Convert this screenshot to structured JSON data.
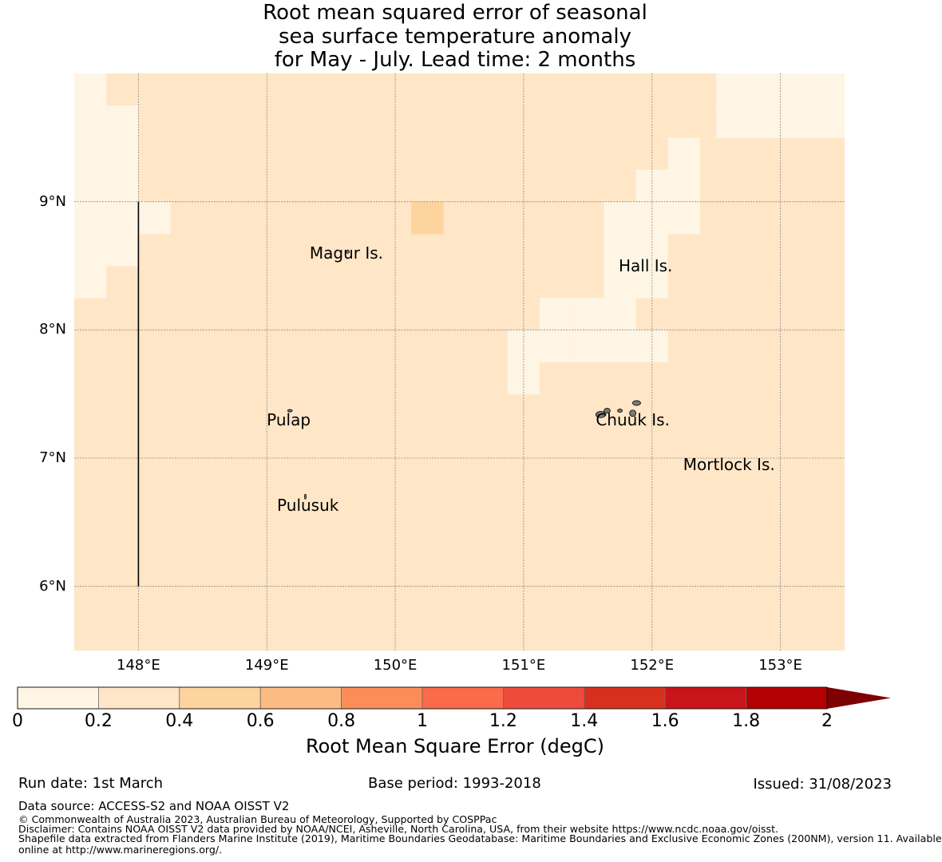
{
  "title": {
    "line1": "Root mean squared error of seasonal",
    "line2": "sea surface temperature anomaly",
    "line3": "for May - July. Lead time: 2 months"
  },
  "map": {
    "lon_range": [
      147.5,
      153.5
    ],
    "lat_range": [
      5.5,
      10.0
    ],
    "cell_size_deg": 0.25,
    "background_value": 0.3,
    "cells": [
      {
        "lon": 147.5,
        "lat": 9.75,
        "value": 0.15
      },
      {
        "lon": 147.5,
        "lat": 9.5,
        "value": 0.15
      },
      {
        "lon": 147.5,
        "lat": 9.25,
        "value": 0.15
      },
      {
        "lon": 147.5,
        "lat": 9.0,
        "value": 0.15
      },
      {
        "lon": 147.5,
        "lat": 8.75,
        "value": 0.15
      },
      {
        "lon": 147.5,
        "lat": 8.5,
        "value": 0.15
      },
      {
        "lon": 147.5,
        "lat": 8.25,
        "value": 0.15
      },
      {
        "lon": 147.75,
        "lat": 9.5,
        "value": 0.15
      },
      {
        "lon": 147.75,
        "lat": 9.25,
        "value": 0.15
      },
      {
        "lon": 147.75,
        "lat": 9.0,
        "value": 0.15
      },
      {
        "lon": 147.75,
        "lat": 8.75,
        "value": 0.15
      },
      {
        "lon": 147.75,
        "lat": 8.5,
        "value": 0.15
      },
      {
        "lon": 148.0,
        "lat": 8.75,
        "value": 0.15
      },
      {
        "lon": 150.125,
        "lat": 8.75,
        "value": 0.45
      },
      {
        "lon": 152.5,
        "lat": 9.75,
        "value": 0.15
      },
      {
        "lon": 152.75,
        "lat": 9.75,
        "value": 0.15
      },
      {
        "lon": 153.0,
        "lat": 9.75,
        "value": 0.15
      },
      {
        "lon": 153.25,
        "lat": 9.75,
        "value": 0.15
      },
      {
        "lon": 153.25,
        "lat": 9.5,
        "value": 0.15
      },
      {
        "lon": 153.0,
        "lat": 9.5,
        "value": 0.15
      },
      {
        "lon": 152.75,
        "lat": 9.5,
        "value": 0.15
      },
      {
        "lon": 152.5,
        "lat": 9.5,
        "value": 0.15
      },
      {
        "lon": 152.125,
        "lat": 9.25,
        "value": 0.15
      },
      {
        "lon": 151.875,
        "lat": 9.0,
        "value": 0.15
      },
      {
        "lon": 152.125,
        "lat": 9.0,
        "value": 0.15
      },
      {
        "lon": 151.625,
        "lat": 8.75,
        "value": 0.15
      },
      {
        "lon": 151.875,
        "lat": 8.75,
        "value": 0.15
      },
      {
        "lon": 152.125,
        "lat": 8.75,
        "value": 0.15
      },
      {
        "lon": 151.625,
        "lat": 8.5,
        "value": 0.15
      },
      {
        "lon": 151.875,
        "lat": 8.5,
        "value": 0.15
      },
      {
        "lon": 151.625,
        "lat": 8.25,
        "value": 0.15
      },
      {
        "lon": 151.875,
        "lat": 8.25,
        "value": 0.15
      },
      {
        "lon": 151.125,
        "lat": 8.0,
        "value": 0.15
      },
      {
        "lon": 151.375,
        "lat": 8.0,
        "value": 0.15
      },
      {
        "lon": 151.625,
        "lat": 8.0,
        "value": 0.15
      },
      {
        "lon": 150.875,
        "lat": 7.75,
        "value": 0.15
      },
      {
        "lon": 151.125,
        "lat": 7.75,
        "value": 0.15
      },
      {
        "lon": 151.375,
        "lat": 7.75,
        "value": 0.15
      },
      {
        "lon": 151.625,
        "lat": 7.75,
        "value": 0.15
      },
      {
        "lon": 151.875,
        "lat": 7.75,
        "value": 0.15
      },
      {
        "lon": 150.875,
        "lat": 7.5,
        "value": 0.15
      }
    ],
    "vertical_line": {
      "lon": 148.0,
      "lat_from": 6.0,
      "lat_to": 9.0
    },
    "lat_ticks": [
      {
        "lat": 9,
        "label": "9°N"
      },
      {
        "lat": 8,
        "label": "8°N"
      },
      {
        "lat": 7,
        "label": "7°N"
      },
      {
        "lat": 6,
        "label": "6°N"
      }
    ],
    "lon_ticks": [
      {
        "lon": 148,
        "label": "148°E"
      },
      {
        "lon": 149,
        "label": "149°E"
      },
      {
        "lon": 150,
        "label": "150°E"
      },
      {
        "lon": 151,
        "label": "151°E"
      },
      {
        "lon": 152,
        "label": "152°E"
      },
      {
        "lon": 153,
        "label": "153°E"
      }
    ],
    "places": [
      {
        "name": "Magur Is.",
        "lon": 149.62,
        "lat": 8.6
      },
      {
        "name": "Hall Is.",
        "lon": 151.95,
        "lat": 8.5
      },
      {
        "name": "Pulap",
        "lon": 149.17,
        "lat": 7.3
      },
      {
        "name": "Chuuk Is.",
        "lon": 151.85,
        "lat": 7.3
      },
      {
        "name": "Mortlock Is.",
        "lon": 152.6,
        "lat": 6.95
      },
      {
        "name": "Pulusuk",
        "lon": 149.32,
        "lat": 6.63
      }
    ]
  },
  "colorbar": {
    "boundaries": [
      0,
      0.2,
      0.4,
      0.6,
      0.8,
      1,
      1.2,
      1.4,
      1.6,
      1.8,
      2
    ],
    "tick_labels": [
      "0",
      "0.2",
      "0.4",
      "0.6",
      "0.8",
      "1",
      "1.2",
      "1.4",
      "1.6",
      "1.8",
      "2"
    ],
    "colors": [
      "#fff5e4",
      "#fee6c7",
      "#fdd49e",
      "#fdbb84",
      "#fc8d59",
      "#fb6a4a",
      "#ef4b3c",
      "#d7301f",
      "#c8141a",
      "#b30000"
    ],
    "extend_color": "#7f0000",
    "label": "Root Mean Square Error (degC)"
  },
  "footer": {
    "run_date": "Run date: 1st March",
    "base_period": "Base period: 1993-2018",
    "issued": "Issued: 31/08/2023",
    "data_source": "Data source: ACCESS-S2 and NOAA OISST V2",
    "copyright": "© Commonwealth of Australia 2023, Australian Bureau of Meteorology, Supported by COSPPac",
    "disclaimer": "Disclaimer: Contains NOAA OISST V2 data provided by NOAA/NCEI, Asheville, North Carolina, USA, from their website https://www.ncdc.noaa.gov/oisst.",
    "shapefile_line1": "Shapefile data extracted from Flanders Marine Institute (2019), Maritime Boundaries Geodatabase: Maritime Boundaries and Exclusive Economic Zones (200NM), version 11. Available",
    "shapefile_line2": "online at http://www.marineregions.org/."
  }
}
